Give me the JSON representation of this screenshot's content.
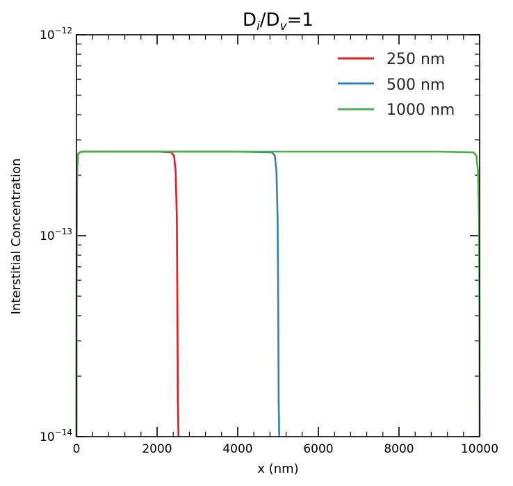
{
  "chart_data": {
    "type": "line",
    "title_main": "D",
    "title_sub1": "i",
    "title_mid": "/D",
    "title_sub2": "v",
    "title_end": "=1",
    "xlabel": "x (nm)",
    "ylabel": "Interstitial Concentration",
    "xlim": [
      0,
      10000
    ],
    "ylim": [
      1e-14,
      1e-12
    ],
    "yscale": "log",
    "grid": false,
    "legend_position": "top-right",
    "x_ticks": [
      {
        "value": 0,
        "label": "0"
      },
      {
        "value": 2000,
        "label": "2000"
      },
      {
        "value": 4000,
        "label": "4000"
      },
      {
        "value": 6000,
        "label": "6000"
      },
      {
        "value": 8000,
        "label": "8000"
      },
      {
        "value": 10000,
        "label": "10000"
      }
    ],
    "y_ticks": [
      {
        "value": 1e-14,
        "base": "10",
        "exp": "−14"
      },
      {
        "value": 1e-13,
        "base": "10",
        "exp": "−13"
      },
      {
        "value": 1e-12,
        "base": "10",
        "exp": "−12"
      }
    ],
    "series": [
      {
        "name": "250 nm",
        "color": "#e41a1c",
        "x": [
          0,
          5,
          15,
          40,
          80,
          150,
          300,
          1000,
          2000,
          2350,
          2420,
          2460,
          2490,
          2505,
          2515,
          2530
        ],
        "y": [
          1e-14,
          1e-13,
          2.1e-13,
          2.55e-13,
          2.6e-13,
          2.62e-13,
          2.62e-13,
          2.62e-13,
          2.62e-13,
          2.6e-13,
          2.5e-13,
          2.1e-13,
          1.2e-13,
          4e-14,
          1.5e-14,
          1e-14
        ]
      },
      {
        "name": "500 nm",
        "color": "#377eb8",
        "x": [
          0,
          5,
          15,
          40,
          80,
          150,
          300,
          1000,
          2000,
          3000,
          4000,
          4850,
          4920,
          4960,
          4990,
          5005,
          5015,
          5030
        ],
        "y": [
          1e-14,
          1e-13,
          2.1e-13,
          2.55e-13,
          2.6e-13,
          2.62e-13,
          2.62e-13,
          2.62e-13,
          2.62e-13,
          2.62e-13,
          2.62e-13,
          2.6e-13,
          2.5e-13,
          2.1e-13,
          1.2e-13,
          4e-14,
          1.5e-14,
          1e-14
        ]
      },
      {
        "name": "1000 nm",
        "color": "#4daf4a",
        "x": [
          0,
          5,
          15,
          40,
          80,
          150,
          300,
          1000,
          3000,
          5000,
          7000,
          9000,
          9850,
          9920,
          9960,
          9985,
          9995,
          10000
        ],
        "y": [
          1e-14,
          1e-13,
          2.1e-13,
          2.55e-13,
          2.6e-13,
          2.62e-13,
          2.62e-13,
          2.62e-13,
          2.62e-13,
          2.62e-13,
          2.62e-13,
          2.62e-13,
          2.6e-13,
          2.5e-13,
          2.1e-13,
          1.2e-13,
          4e-14,
          1e-14
        ]
      }
    ]
  }
}
